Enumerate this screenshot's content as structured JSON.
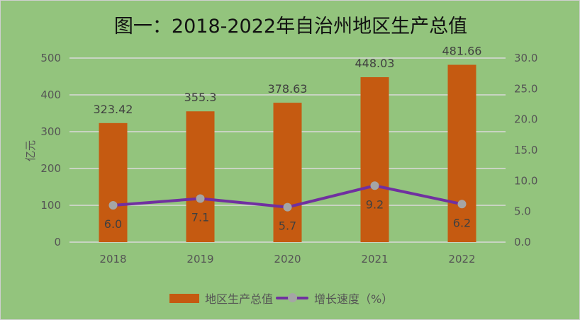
{
  "chart_data": {
    "type": "bar+line",
    "title": "图一：2018-2022年自治州地区生产总值",
    "categories": [
      "2018",
      "2019",
      "2020",
      "2021",
      "2022"
    ],
    "series": [
      {
        "name": "地区生产总值",
        "type": "bar",
        "axis": "left",
        "values": [
          323.42,
          355.3,
          378.63,
          448.03,
          481.66
        ],
        "labels": [
          "323.42",
          "355.3",
          "378.63",
          "448.03",
          "481.66"
        ],
        "color": "#c55a11"
      },
      {
        "name": "增长速度（%）",
        "type": "line",
        "axis": "right",
        "values": [
          6.0,
          7.1,
          5.7,
          9.2,
          6.2
        ],
        "labels": [
          "6.0",
          "7.1",
          "5.7",
          "9.2",
          "6.2"
        ],
        "color": "#7030a0",
        "marker_color": "#a5a5a5"
      }
    ],
    "ylabel": "亿元",
    "ylim": [
      0,
      500
    ],
    "yticks": [
      "0",
      "100",
      "200",
      "300",
      "400",
      "500"
    ],
    "y2lim": [
      0,
      30
    ],
    "y2ticks": [
      "0.0",
      "5.0",
      "10.0",
      "15.0",
      "20.0",
      "25.0",
      "30.0"
    ],
    "grid": true,
    "legend": "bottom"
  }
}
